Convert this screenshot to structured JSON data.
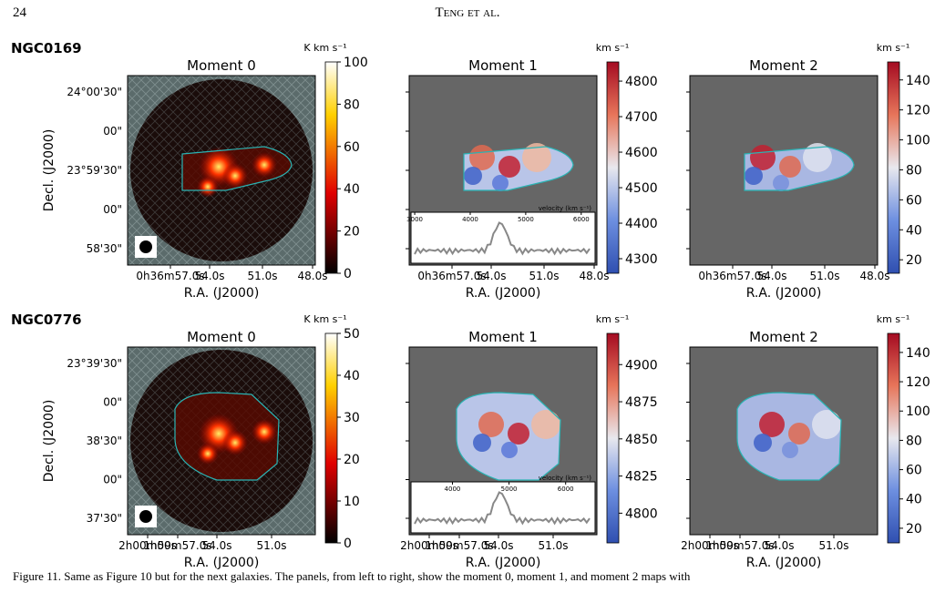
{
  "header": {
    "page": "24",
    "running_title": "Teng et al."
  },
  "rows": [
    {
      "galaxy": "NGC0169",
      "ra_ticks": [
        "0h36m57.0s",
        "54.0s",
        "51.0s",
        "48.0s"
      ],
      "dec_ticks": [
        "24°00'30\"",
        "00\"",
        "23°59'30\"",
        "00\"",
        "58'30\""
      ],
      "x_label": "R.A. (J2000)",
      "y_label": "Decl. (J2000)",
      "panels": [
        {
          "title": "Moment 0",
          "unit": "K km s⁻¹",
          "colormap": "hot",
          "clim": [
            0,
            100
          ],
          "cticks": [
            0,
            20,
            40,
            60,
            80,
            100
          ]
        },
        {
          "title": "Moment 1",
          "unit": "km s⁻¹",
          "colormap": "coolwarm",
          "clim": [
            4259,
            4854
          ],
          "cticks": [
            4300,
            4400,
            4500,
            4600,
            4700,
            4800
          ],
          "inset": {
            "label": "velocity (km s⁻¹)",
            "xlim": [
              2933,
              6250
            ],
            "xticks": [
              3000,
              4000,
              5000,
              6000
            ]
          }
        },
        {
          "title": "Moment 2",
          "unit": "km s⁻¹",
          "colormap": "coolwarm",
          "clim": [
            11,
            152
          ],
          "cticks": [
            20,
            40,
            60,
            80,
            100,
            120,
            140
          ]
        }
      ]
    },
    {
      "galaxy": "NGC0776",
      "ra_ticks": [
        "2h00m00s",
        "1h59m57.0s",
        "54.0s",
        "51.0s"
      ],
      "dec_ticks": [
        "23°39'30\"",
        "00\"",
        "38'30\"",
        "00\"",
        "37'30\""
      ],
      "x_label": "R.A. (J2000)",
      "y_label": "Decl. (J2000)",
      "panels": [
        {
          "title": "Moment 0",
          "unit": "K km s⁻¹",
          "colormap": "hot",
          "clim": [
            0,
            50
          ],
          "cticks": [
            0,
            10,
            20,
            30,
            40,
            50
          ]
        },
        {
          "title": "Moment 1",
          "unit": "km s⁻¹",
          "colormap": "coolwarm",
          "clim": [
            4780,
            4921
          ],
          "cticks": [
            4800,
            4825,
            4850,
            4875,
            4900
          ],
          "inset": {
            "label": "velocity (km s⁻¹)",
            "xlim": [
              3268,
              6520
            ],
            "xticks": [
              4000,
              5000,
              6000
            ]
          }
        },
        {
          "title": "Moment 2",
          "unit": "km s⁻¹",
          "colormap": "coolwarm",
          "clim": [
            10,
            153
          ],
          "cticks": [
            20,
            40,
            60,
            80,
            100,
            120,
            140
          ]
        }
      ]
    }
  ],
  "caption": "Figure 11. Same as Figure 10 but for the next galaxies. The panels, from left to right, show the moment 0, moment 1, and moment 2 maps with"
}
